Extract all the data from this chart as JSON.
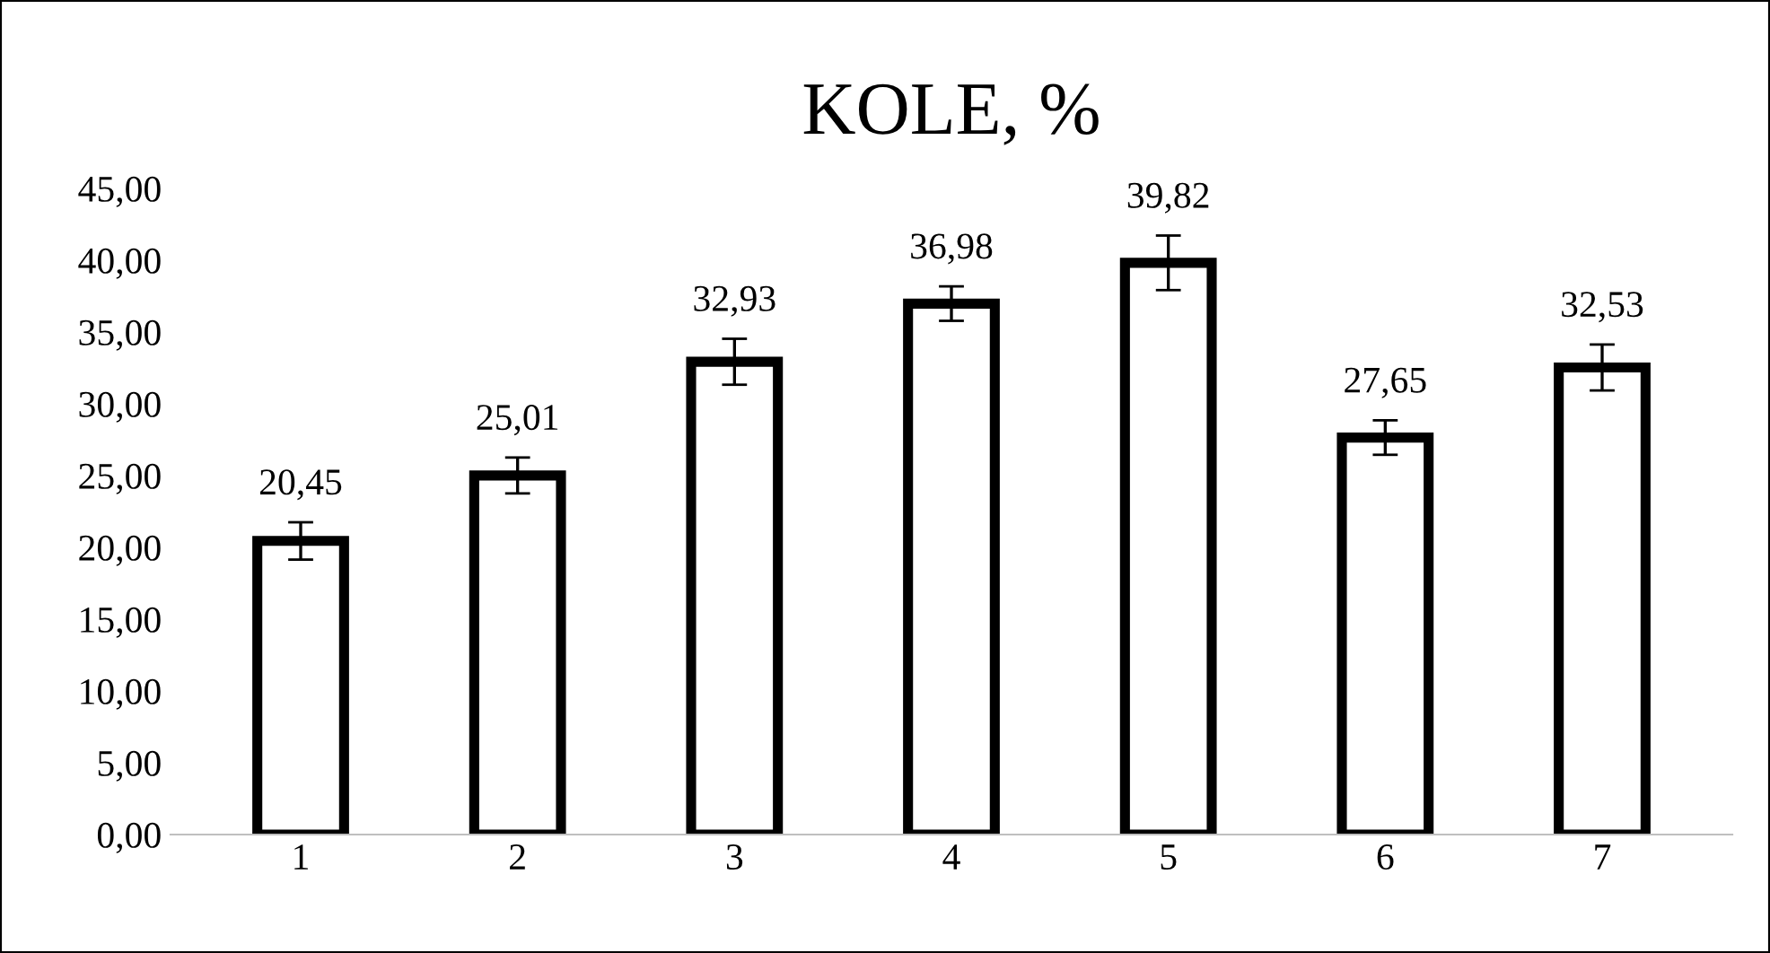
{
  "chart_data": {
    "type": "bar",
    "title": "KOLE, %",
    "categories": [
      "1",
      "2",
      "3",
      "4",
      "5",
      "6",
      "7"
    ],
    "values": [
      20.45,
      25.01,
      32.93,
      36.98,
      39.82,
      27.65,
      32.53
    ],
    "errors": [
      1.3,
      1.25,
      1.6,
      1.2,
      1.9,
      1.2,
      1.6
    ],
    "value_labels": [
      "20,45",
      "25,01",
      "32,93",
      "36,98",
      "39,82",
      "27,65",
      "32,53"
    ],
    "color": "#ffffff",
    "ylim": [
      0,
      45
    ],
    "yticks": [
      {
        "value": 0,
        "label": "0,00"
      },
      {
        "value": 5,
        "label": "5,00"
      },
      {
        "value": 10,
        "label": "10,00"
      },
      {
        "value": 15,
        "label": "15,00"
      },
      {
        "value": 20,
        "label": "20,00"
      },
      {
        "value": 25,
        "label": "25,00"
      },
      {
        "value": 30,
        "label": "30,00"
      },
      {
        "value": 35,
        "label": "35,00"
      },
      {
        "value": 40,
        "label": "40,00"
      },
      {
        "value": 45,
        "label": "45,00"
      }
    ],
    "grid": false,
    "legend": false
  }
}
